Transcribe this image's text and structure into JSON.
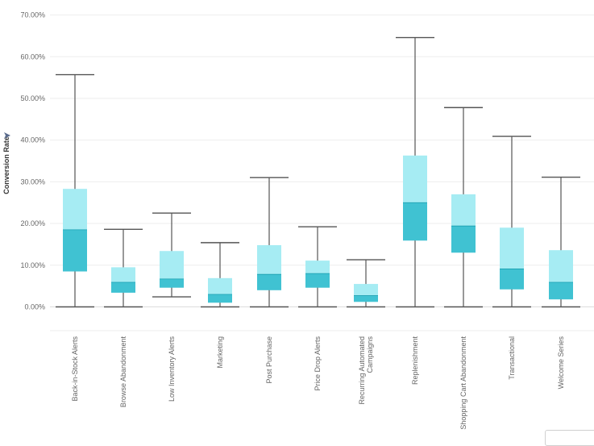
{
  "chart_data": {
    "type": "box",
    "title": "",
    "ylabel": "Conversion Rate",
    "ylabel_icon": "pin-icon",
    "ylim": [
      0,
      70
    ],
    "yticks": [
      {
        "value": 0,
        "label": "0.00%"
      },
      {
        "value": 10,
        "label": "10.00%"
      },
      {
        "value": 20,
        "label": "20.00%"
      },
      {
        "value": 30,
        "label": "30.00%"
      },
      {
        "value": 40,
        "label": "40.00%"
      },
      {
        "value": 50,
        "label": "50.00%"
      },
      {
        "value": 60,
        "label": "60.00%"
      },
      {
        "value": 70,
        "label": "70.00%"
      }
    ],
    "grid": true,
    "colors": {
      "upper_box": "#a6ecf3",
      "lower_box": "#40c2d2",
      "whisker": "#555555"
    },
    "categories": [
      "Back-in-Stock Alerts",
      "Browse Abandonment",
      "Low Inventory Alerts",
      "Marketing",
      "Post Purchase",
      "Price Drop Alerts",
      "Recurring Automated Campaigns",
      "Replenishment",
      "Shopping Cart Abandonment",
      "Transactional",
      "Welcome Series"
    ],
    "category_label_lines": [
      [
        "Back-in-Stock Alerts"
      ],
      [
        "Browse Abandonment"
      ],
      [
        "Low Inventory Alerts"
      ],
      [
        "Marketing"
      ],
      [
        "Post Purchase"
      ],
      [
        "Price Drop Alerts"
      ],
      [
        "Recurring Automated",
        "Campaigns"
      ],
      [
        "Replenishment"
      ],
      [
        "Shopping Cart Abandonment"
      ],
      [
        "Transactional"
      ],
      [
        "Welcome Series"
      ]
    ],
    "boxes": [
      {
        "min": 0.0,
        "q1": 8.5,
        "median": 18.5,
        "q3": 28.3,
        "max": 55.7
      },
      {
        "min": 0.0,
        "q1": 3.4,
        "median": 5.9,
        "q3": 9.5,
        "max": 18.6
      },
      {
        "min": 2.4,
        "q1": 4.6,
        "median": 6.7,
        "q3": 13.4,
        "max": 22.5
      },
      {
        "min": 0.0,
        "q1": 1.0,
        "median": 3.0,
        "q3": 6.9,
        "max": 15.4
      },
      {
        "min": 0.0,
        "q1": 4.0,
        "median": 7.8,
        "q3": 14.8,
        "max": 31.0
      },
      {
        "min": 0.0,
        "q1": 4.6,
        "median": 8.0,
        "q3": 11.1,
        "max": 19.2
      },
      {
        "min": 0.0,
        "q1": 1.2,
        "median": 2.7,
        "q3": 5.5,
        "max": 11.3
      },
      {
        "min": 0.0,
        "q1": 15.9,
        "median": 25.0,
        "q3": 36.3,
        "max": 64.6
      },
      {
        "min": 0.0,
        "q1": 13.0,
        "median": 19.4,
        "q3": 27.0,
        "max": 47.8
      },
      {
        "min": 0.0,
        "q1": 4.2,
        "median": 9.1,
        "q3": 19.0,
        "max": 40.9
      },
      {
        "min": 0.0,
        "q1": 1.8,
        "median": 5.9,
        "q3": 13.6,
        "max": 31.1
      }
    ]
  }
}
